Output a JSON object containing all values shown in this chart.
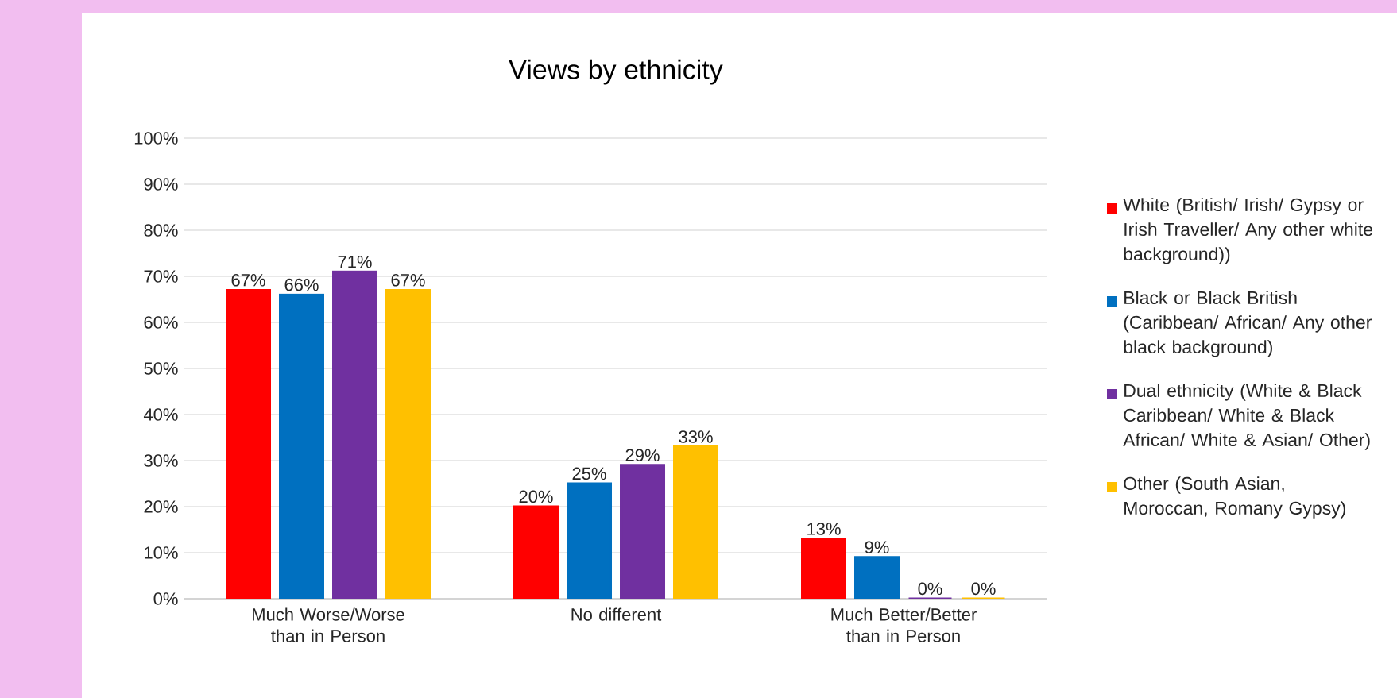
{
  "chart_data": {
    "type": "bar",
    "title": "Views by ethnicity",
    "categories": [
      "Much Worse/Worse than in Person",
      "No different",
      "Much Better/Better than in Person"
    ],
    "series": [
      {
        "name": "White (British/ Irish/ Gypsy or Irish Traveller/ Any other white background))",
        "color": "#ff0000",
        "values": [
          67,
          20,
          13
        ],
        "value_labels": [
          "67%",
          "20%",
          "13%"
        ]
      },
      {
        "name": "Black or Black British (Caribbean/ African/ Any other black background)",
        "color": "#0070c0",
        "values": [
          66,
          25,
          9
        ],
        "value_labels": [
          "66%",
          "25%",
          "9%"
        ]
      },
      {
        "name": "Dual ethnicity (White & Black Caribbean/ White & Black African/ White & Asian/ Other)",
        "color": "#7030a0",
        "values": [
          71,
          29,
          0
        ],
        "value_labels": [
          "71%",
          "29%",
          "0%"
        ]
      },
      {
        "name": "Other (South Asian, Moroccan, Romany Gypsy)",
        "color": "#ffc000",
        "values": [
          67,
          33,
          0
        ],
        "value_labels": [
          "67%",
          "33%",
          "0%"
        ]
      }
    ],
    "ylim": [
      0,
      100
    ],
    "yticks": [
      {
        "value": 0,
        "label": "0%"
      },
      {
        "value": 10,
        "label": "10%"
      },
      {
        "value": 20,
        "label": "20%"
      },
      {
        "value": 30,
        "label": "30%"
      },
      {
        "value": 40,
        "label": "40%"
      },
      {
        "value": 50,
        "label": "50%"
      },
      {
        "value": 60,
        "label": "60%"
      },
      {
        "value": 70,
        "label": "70%"
      },
      {
        "value": 80,
        "label": "80%"
      },
      {
        "value": 90,
        "label": "90%"
      },
      {
        "value": 100,
        "label": "100%"
      }
    ],
    "grid": "y",
    "legend": "right"
  }
}
